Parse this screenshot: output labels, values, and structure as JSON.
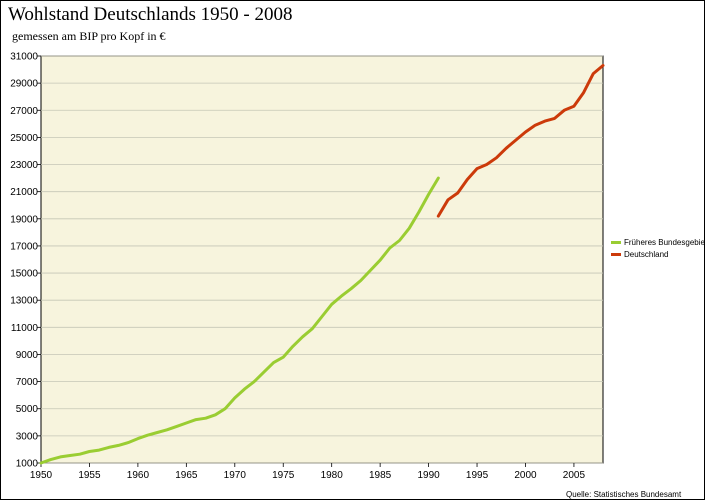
{
  "chart_data": {
    "type": "line",
    "title": "Wohlstand Deutschlands 1950 - 2008",
    "subtitle": "gemessen am BIP pro Kopf in €",
    "xlabel": "",
    "ylabel": "",
    "xlim": [
      1950,
      2008
    ],
    "ylim": [
      1000,
      31000
    ],
    "xticks": [
      1950,
      1955,
      1960,
      1965,
      1970,
      1975,
      1980,
      1985,
      1990,
      1995,
      2000,
      2005
    ],
    "yticks": [
      1000,
      3000,
      5000,
      7000,
      9000,
      11000,
      13000,
      15000,
      17000,
      19000,
      21000,
      23000,
      25000,
      27000,
      29000,
      31000
    ],
    "grid": true,
    "legend_position": "right",
    "background_color": "#f7f4dd",
    "series": [
      {
        "name": "Früheres Bundesgebiet",
        "color": "#9acd32",
        "x": [
          1950,
          1951,
          1952,
          1953,
          1954,
          1955,
          1956,
          1957,
          1958,
          1959,
          1960,
          1961,
          1962,
          1963,
          1964,
          1965,
          1966,
          1967,
          1968,
          1969,
          1970,
          1971,
          1972,
          1973,
          1974,
          1975,
          1976,
          1977,
          1978,
          1979,
          1980,
          1981,
          1982,
          1983,
          1984,
          1985,
          1986,
          1987,
          1988,
          1989,
          1990,
          1991
        ],
        "values": [
          1000,
          1250,
          1450,
          1550,
          1650,
          1850,
          1950,
          2150,
          2300,
          2500,
          2800,
          3050,
          3250,
          3450,
          3700,
          3950,
          4200,
          4300,
          4550,
          5000,
          5800,
          6450,
          7000,
          7700,
          8400,
          8800,
          9600,
          10300,
          10900,
          11800,
          12700,
          13300,
          13850,
          14450,
          15200,
          15950,
          16850,
          17400,
          18300,
          19500,
          20800,
          22000
        ]
      },
      {
        "name": "Deutschland",
        "color": "#cc3a0a",
        "x": [
          1991,
          1992,
          1993,
          1994,
          1995,
          1996,
          1997,
          1998,
          1999,
          2000,
          2001,
          2002,
          2003,
          2004,
          2005,
          2006,
          2007,
          2008
        ],
        "values": [
          19200,
          20400,
          20900,
          21900,
          22700,
          23000,
          23500,
          24200,
          24800,
          25400,
          25900,
          26200,
          26400,
          27000,
          27300,
          28300,
          29700,
          30300
        ]
      }
    ]
  },
  "source": "Quelle: Statistisches Bundesamt"
}
